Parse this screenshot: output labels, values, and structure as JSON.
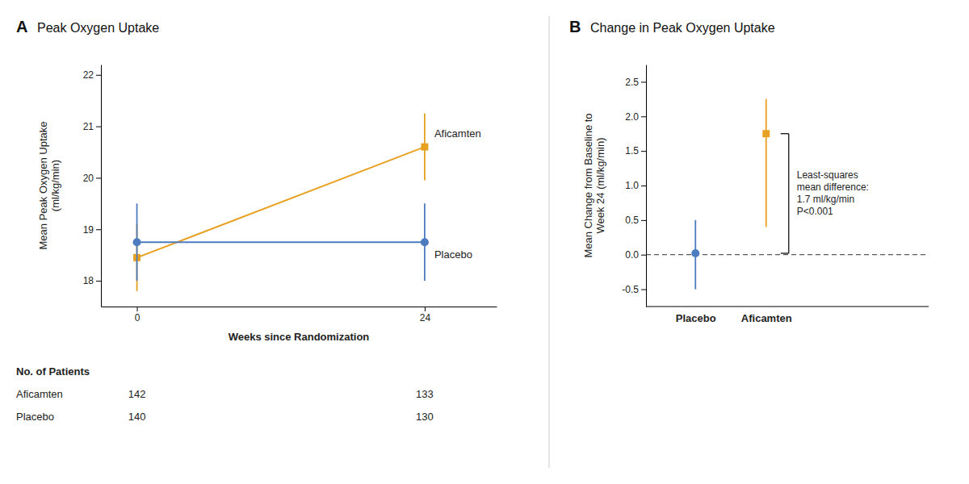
{
  "chart_data": [
    {
      "type": "line",
      "panel_label": "A",
      "title": "Peak Oxygen Uptake",
      "xlabel": "Weeks since Randomization",
      "ylabel": "Mean Peak Oxygen Uptake\n(ml/kg/min)",
      "x": [
        0,
        24
      ],
      "xlim": [
        -3,
        30
      ],
      "xticks": [
        0,
        24
      ],
      "ylim": [
        17.5,
        22.2
      ],
      "yticks": [
        18,
        19,
        20,
        21,
        22
      ],
      "grid": false,
      "table_title": "No. of Patients",
      "series": [
        {
          "name": "Aficamten",
          "color": "#E8A020",
          "marker": "square",
          "line_style": "solid",
          "values": [
            18.45,
            20.6
          ],
          "error_low": [
            0.65,
            0.65
          ],
          "error_high": [
            0.65,
            0.65
          ],
          "patients": [
            142,
            133
          ]
        },
        {
          "name": "Placebo",
          "color": "#4C7BC0",
          "marker": "circle",
          "line_style": "solid",
          "values": [
            18.75,
            18.75
          ],
          "error_low": [
            0.75,
            0.75
          ],
          "error_high": [
            0.75,
            0.75
          ],
          "patients": [
            140,
            130
          ]
        }
      ]
    },
    {
      "type": "dot",
      "panel_label": "B",
      "title": "Change in Peak Oxygen Uptake",
      "ylabel": "Mean Change from Baseline to\nWeek 24 (ml/kg/min)",
      "categories": [
        "Placebo",
        "Aficamten"
      ],
      "ylim": [
        -0.75,
        2.75
      ],
      "yticks": [
        -0.5,
        {
          "value": 0,
          "label": "0.0"
        },
        0.5,
        {
          "value": 1,
          "label": "1.0"
        },
        1.5,
        {
          "value": 2,
          "label": "2.0"
        },
        2.5
      ],
      "grid": false,
      "reference_line": {
        "value": 0,
        "line_style": "dashed"
      },
      "annotation": "Least-squares\nmean difference:\n1.7 ml/kg/min\nP<0.001",
      "series": [
        {
          "color": "#4C7BC0",
          "marker": "circle",
          "values": [
            0.02,
            null
          ],
          "error_low": [
            0.52,
            null
          ],
          "error_high": [
            0.48,
            null
          ]
        },
        {
          "color": "#E8A020",
          "marker": "square",
          "values": [
            null,
            1.75
          ],
          "error_low": [
            null,
            1.35
          ],
          "error_high": [
            null,
            0.5
          ]
        }
      ]
    }
  ]
}
